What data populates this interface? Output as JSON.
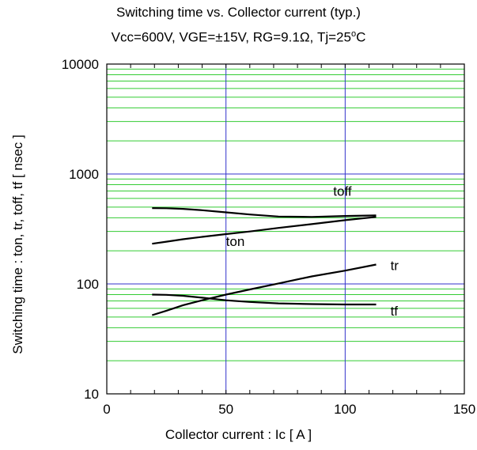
{
  "chart_data": {
    "type": "line",
    "title": "Switching time vs. Collector current (typ.)",
    "subtitle_parts": [
      "Vcc=600V, VGE=±15V, RG=9.1Ω,  Tj=25",
      "o",
      "C"
    ],
    "xlabel": "Collector current : Ic [ A ]",
    "ylabel": "Switching time : ton, tr, toff, tf [ nsec ]",
    "xlim": [
      0,
      150
    ],
    "ylim": [
      10,
      10000
    ],
    "yscale": "log",
    "xticks": [
      "0",
      "50",
      "100",
      "150"
    ],
    "yticks": [
      "10",
      "100",
      "1000",
      "10000"
    ],
    "grid": true,
    "colors": {
      "major_grid": "#3333cc",
      "minor_grid": "#33cc33",
      "curve": "#000000",
      "frame": "#000000"
    },
    "series": [
      {
        "name": "toff",
        "label_at": [
          95,
          700
        ],
        "x": [
          19,
          25,
          32,
          40,
          50,
          60,
          72,
          86,
          100,
          113
        ],
        "y": [
          490,
          488,
          482,
          468,
          448,
          428,
          410,
          407,
          415,
          420
        ]
      },
      {
        "name": "ton",
        "label_at": [
          50,
          245
        ],
        "x": [
          19,
          25,
          32,
          40,
          50,
          60,
          72,
          86,
          100,
          113
        ],
        "y": [
          232,
          242,
          255,
          268,
          284,
          300,
          323,
          350,
          380,
          407
        ]
      },
      {
        "name": "tr",
        "label_at": [
          119,
          148
        ],
        "x": [
          19,
          25,
          32,
          40,
          50,
          60,
          72,
          86,
          100,
          113
        ],
        "y": [
          52,
          57,
          64,
          71,
          80,
          89,
          101,
          117,
          132,
          150
        ]
      },
      {
        "name": "tf",
        "label_at": [
          119,
          57
        ],
        "x": [
          19,
          25,
          32,
          40,
          50,
          60,
          72,
          86,
          100,
          113
        ],
        "y": [
          80,
          79.5,
          78,
          75,
          71,
          68.5,
          66.5,
          65.5,
          65,
          65
        ]
      }
    ]
  }
}
